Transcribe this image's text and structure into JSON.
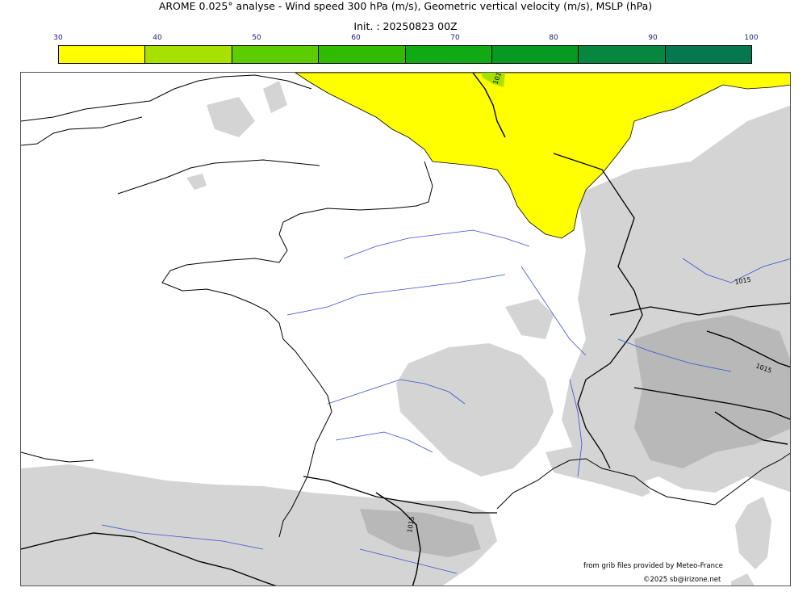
{
  "header": {
    "title": "AROME 0.025° analyse - Wind speed 300 hPa (m/s), Geometric vertical velocity (m/s), MSLP (hPa)",
    "subtitle": "Init. : 20250823 00Z"
  },
  "colorbar": {
    "ticks": [
      "30",
      "40",
      "50",
      "60",
      "70",
      "80",
      "90",
      "100"
    ],
    "colors": [
      "#ffff00",
      "#a8e000",
      "#5ccd00",
      "#30ba00",
      "#11aa14",
      "#089922",
      "#078640",
      "#06784f"
    ]
  },
  "map": {
    "isobar_labels": [
      "1015",
      "1015",
      "1015",
      "1015"
    ],
    "wind_fill_color": "#ffff00",
    "terrain_color": "#d0d0d0",
    "river_color": "#3b4fd6"
  },
  "credits": {
    "source": "from grib files provided by Meteo-France",
    "copyright": "©2025 sb@irizone.net"
  }
}
